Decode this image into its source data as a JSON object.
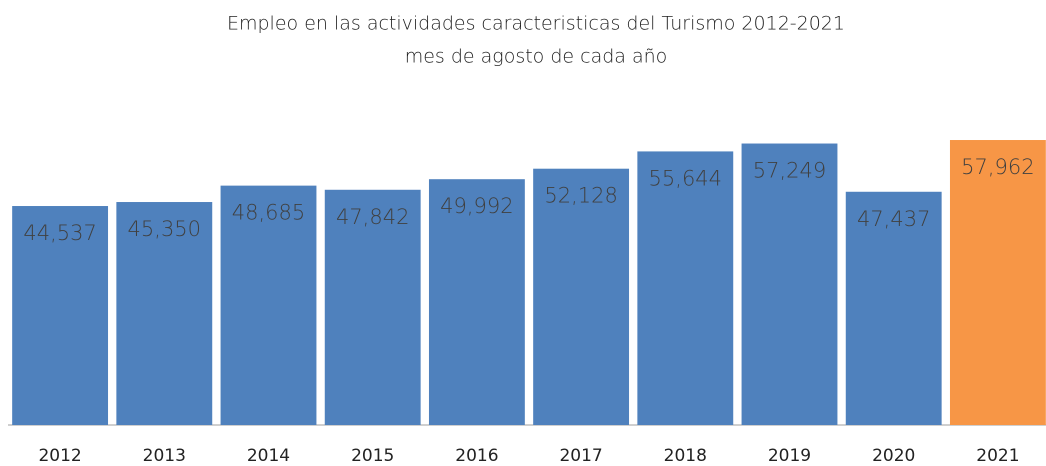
{
  "chart_data": {
    "type": "bar",
    "title": "Empleo en las actividades caracteristicas del Turismo  2012-2021",
    "subtitle": "mes de agosto de cada año",
    "categories": [
      "2012",
      "2013",
      "2014",
      "2015",
      "2016",
      "2017",
      "2018",
      "2019",
      "2020",
      "2021"
    ],
    "values": [
      44537,
      45350,
      48685,
      47842,
      49992,
      52128,
      55644,
      57249,
      47437,
      57962
    ],
    "value_labels": [
      "44,537",
      "45,350",
      "48,685",
      "47,842",
      "49,992",
      "52,128",
      "55,644",
      "57,249",
      "47,437",
      "57,962"
    ],
    "colors": [
      "#4f81bd",
      "#4f81bd",
      "#4f81bd",
      "#4f81bd",
      "#4f81bd",
      "#4f81bd",
      "#4f81bd",
      "#4f81bd",
      "#4f81bd",
      "#f79646"
    ],
    "ylim": [
      0,
      60000
    ]
  }
}
